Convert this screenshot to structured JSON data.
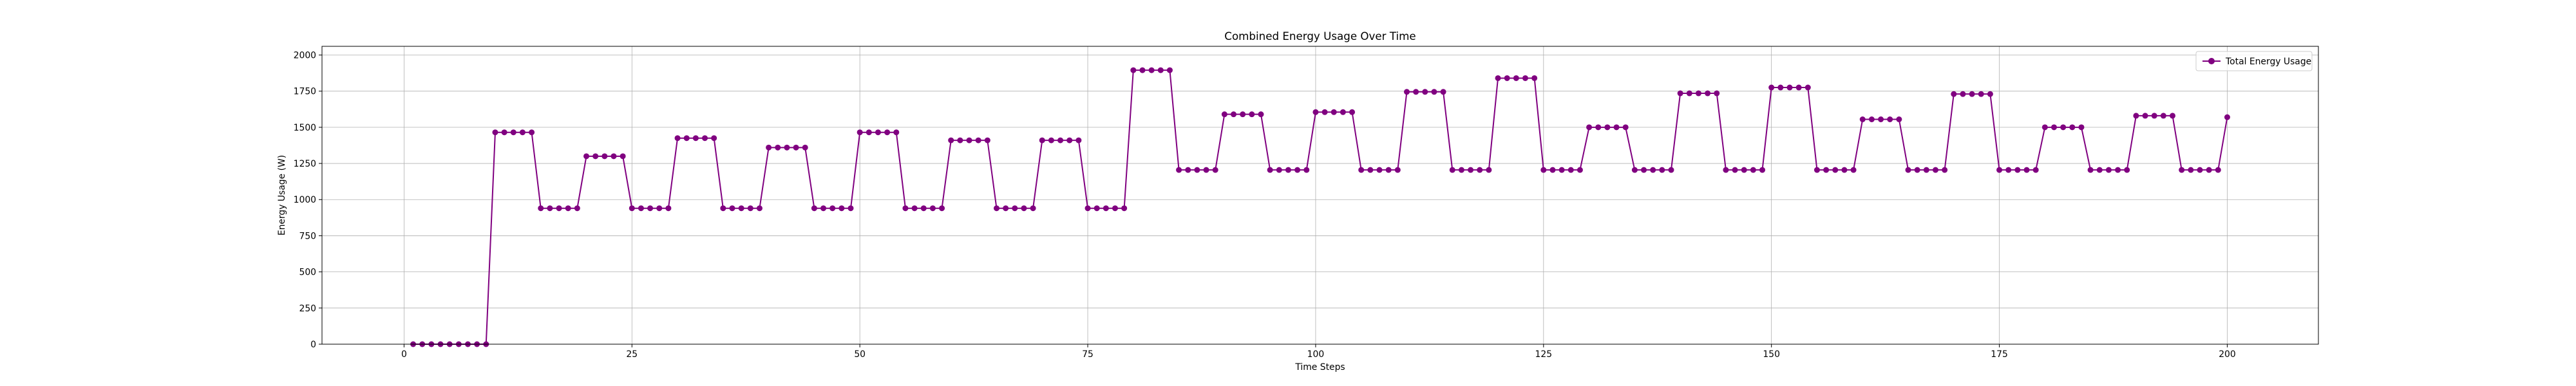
{
  "chart_data": {
    "type": "line",
    "title": "Combined Energy Usage Over Time",
    "xlabel": "Time Steps",
    "ylabel": "Energy Usage (W)",
    "xlim": [
      -9,
      210
    ],
    "ylim": [
      0,
      2060
    ],
    "xticks": [
      0,
      25,
      50,
      75,
      100,
      125,
      150,
      175,
      200
    ],
    "yticks": [
      0,
      250,
      500,
      750,
      1000,
      1250,
      1500,
      1750,
      2000
    ],
    "grid": true,
    "legend_position": "top-right",
    "series": [
      {
        "name": "Total Energy Usage",
        "color": "#800080",
        "marker": "circle",
        "x": [
          1,
          2,
          3,
          4,
          5,
          6,
          7,
          8,
          9,
          10,
          11,
          12,
          13,
          14,
          15,
          16,
          17,
          18,
          19,
          20,
          21,
          22,
          23,
          24,
          25,
          26,
          27,
          28,
          29,
          30,
          31,
          32,
          33,
          34,
          35,
          36,
          37,
          38,
          39,
          40,
          41,
          42,
          43,
          44,
          45,
          46,
          47,
          48,
          49,
          50,
          51,
          52,
          53,
          54,
          55,
          56,
          57,
          58,
          59,
          60,
          61,
          62,
          63,
          64,
          65,
          66,
          67,
          68,
          69,
          70,
          71,
          72,
          73,
          74,
          75,
          76,
          77,
          78,
          79,
          80,
          81,
          82,
          83,
          84,
          85,
          86,
          87,
          88,
          89,
          90,
          91,
          92,
          93,
          94,
          95,
          96,
          97,
          98,
          99,
          100,
          101,
          102,
          103,
          104,
          105,
          106,
          107,
          108,
          109,
          110,
          111,
          112,
          113,
          114,
          115,
          116,
          117,
          118,
          119,
          120,
          121,
          122,
          123,
          124,
          125,
          126,
          127,
          128,
          129,
          130,
          131,
          132,
          133,
          134,
          135,
          136,
          137,
          138,
          139,
          140,
          141,
          142,
          143,
          144,
          145,
          146,
          147,
          148,
          149,
          150,
          151,
          152,
          153,
          154,
          155,
          156,
          157,
          158,
          159,
          160,
          161,
          162,
          163,
          164,
          165,
          166,
          167,
          168,
          169,
          170,
          171,
          172,
          173,
          174,
          175,
          176,
          177,
          178,
          179,
          180,
          181,
          182,
          183,
          184,
          185,
          186,
          187,
          188,
          189,
          190,
          191,
          192,
          193,
          194,
          195,
          196,
          197,
          198,
          199,
          200
        ],
        "y": [
          0,
          0,
          0,
          0,
          0,
          0,
          0,
          0,
          0,
          1465,
          1465,
          1465,
          1465,
          1465,
          940,
          940,
          940,
          940,
          940,
          1300,
          1300,
          1300,
          1300,
          1300,
          940,
          940,
          940,
          940,
          940,
          1425,
          1425,
          1425,
          1425,
          1425,
          940,
          940,
          940,
          940,
          940,
          1360,
          1360,
          1360,
          1360,
          1360,
          940,
          940,
          940,
          940,
          940,
          1465,
          1465,
          1465,
          1465,
          1465,
          940,
          940,
          940,
          940,
          940,
          1410,
          1410,
          1410,
          1410,
          1410,
          940,
          940,
          940,
          940,
          940,
          1410,
          1410,
          1410,
          1410,
          1410,
          940,
          940,
          940,
          940,
          940,
          1895,
          1895,
          1895,
          1895,
          1895,
          1205,
          1205,
          1205,
          1205,
          1205,
          1590,
          1590,
          1590,
          1590,
          1590,
          1205,
          1205,
          1205,
          1205,
          1205,
          1605,
          1605,
          1605,
          1605,
          1605,
          1205,
          1205,
          1205,
          1205,
          1205,
          1745,
          1745,
          1745,
          1745,
          1745,
          1205,
          1205,
          1205,
          1205,
          1205,
          1840,
          1840,
          1840,
          1840,
          1840,
          1205,
          1205,
          1205,
          1205,
          1205,
          1500,
          1500,
          1500,
          1500,
          1500,
          1205,
          1205,
          1205,
          1205,
          1205,
          1735,
          1735,
          1735,
          1735,
          1735,
          1205,
          1205,
          1205,
          1205,
          1205,
          1775,
          1775,
          1775,
          1775,
          1775,
          1205,
          1205,
          1205,
          1205,
          1205,
          1555,
          1555,
          1555,
          1555,
          1555,
          1205,
          1205,
          1205,
          1205,
          1205,
          1730,
          1730,
          1730,
          1730,
          1730,
          1205,
          1205,
          1205,
          1205,
          1205,
          1500,
          1500,
          1500,
          1500,
          1500,
          1205,
          1205,
          1205,
          1205,
          1205,
          1580,
          1580,
          1580,
          1580,
          1580,
          1205,
          1205,
          1205,
          1205,
          1205,
          1570
        ]
      }
    ]
  }
}
